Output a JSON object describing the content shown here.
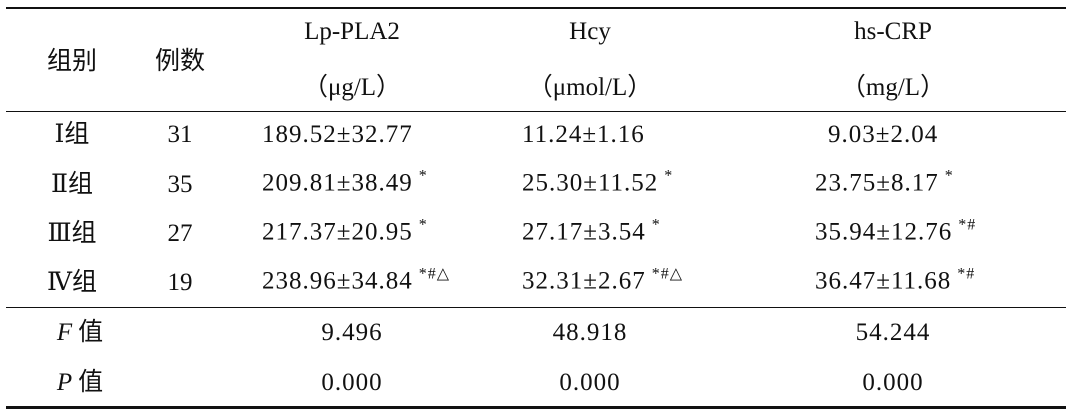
{
  "table": {
    "header": {
      "group": "组别",
      "n": "例数",
      "columns": [
        {
          "name": "Lp-PLA2",
          "unit": "（μg/L）"
        },
        {
          "name": "Hcy",
          "unit": "（μmol/L）"
        },
        {
          "name": "hs-CRP",
          "unit": "（mg/L）"
        }
      ]
    },
    "rows": [
      {
        "group": "Ⅰ组",
        "n": 31,
        "cells": [
          {
            "value": "189.52±32.77"
          },
          {
            "value": "11.24±1.16"
          },
          {
            "value": "9.03±2.04"
          }
        ]
      },
      {
        "group": "Ⅱ组",
        "n": 35,
        "cells": [
          {
            "value": "209.81±38.49",
            "sup": "*"
          },
          {
            "value": "25.30±11.52",
            "sup": "*"
          },
          {
            "value": "23.75±8.17",
            "sup": "*"
          }
        ]
      },
      {
        "group": "Ⅲ组",
        "n": 27,
        "cells": [
          {
            "value": "217.37±20.95",
            "sup": "*"
          },
          {
            "value": "27.17±3.54",
            "sup": "*"
          },
          {
            "value": "35.94±12.76",
            "sup": "*#"
          }
        ]
      },
      {
        "group": "Ⅳ组",
        "n": 19,
        "cells": [
          {
            "value": "238.96±34.84",
            "sup": "*#△"
          },
          {
            "value": "32.31±2.67",
            "sup": "*#△"
          },
          {
            "value": "36.47±11.68",
            "sup": "*#"
          }
        ]
      }
    ],
    "stats": [
      {
        "symbol": "F",
        "label": "值",
        "values": [
          "9.496",
          "48.918",
          "54.244"
        ]
      },
      {
        "symbol": "P",
        "label": "值",
        "values": [
          "0.000",
          "0.000",
          "0.000"
        ]
      }
    ]
  }
}
